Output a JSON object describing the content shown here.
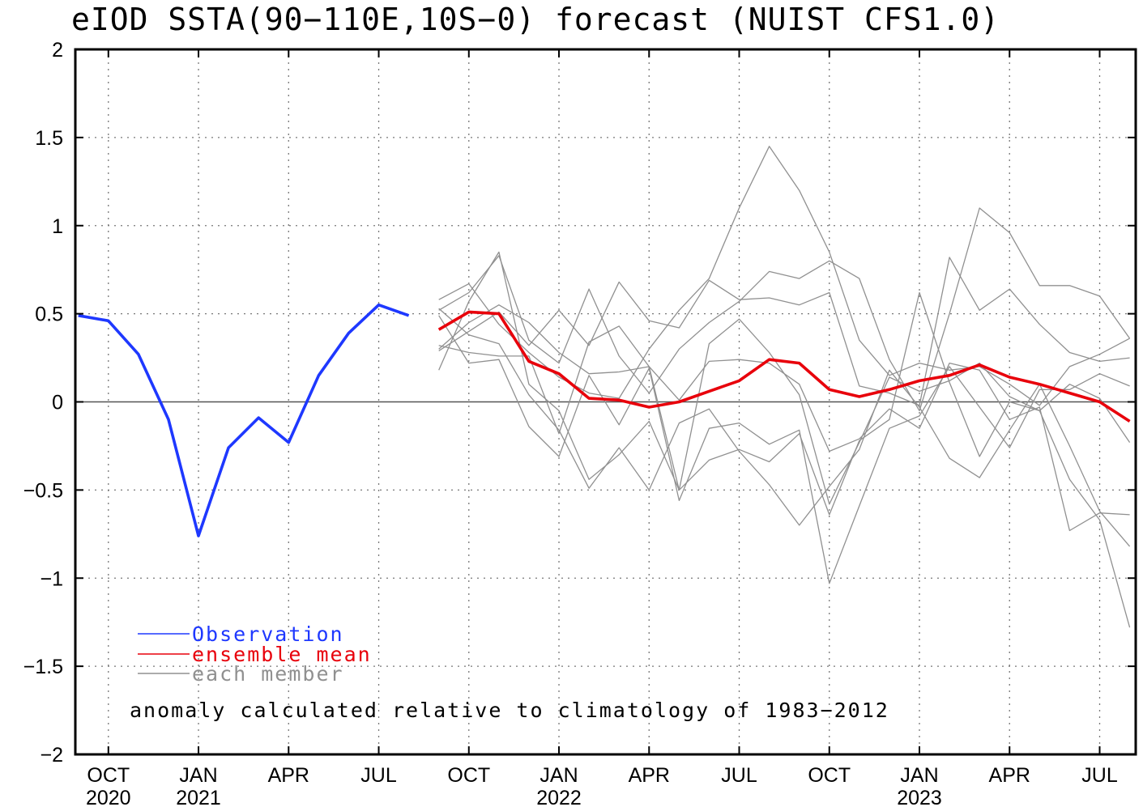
{
  "chart_data": {
    "type": "line",
    "title": "eIOD SSTA(90-110E,10S-0) forecast (NUIST CFS1.0)",
    "xlabel": "",
    "ylabel": "",
    "ylim": [
      -2,
      2
    ],
    "yticks": [
      {
        "value": 2,
        "label": "2"
      },
      {
        "value": 1.5,
        "label": "1.5"
      },
      {
        "value": 1,
        "label": "1"
      },
      {
        "value": 0.5,
        "label": "0.5"
      },
      {
        "value": 0,
        "label": "0"
      },
      {
        "value": -0.5,
        "label": "-0.5"
      },
      {
        "value": -1,
        "label": "-1"
      },
      {
        "value": -1.5,
        "label": "-1.5"
      },
      {
        "value": -2,
        "label": "-2"
      }
    ],
    "x_range": [
      "2020-09",
      "2023-08"
    ],
    "xticks": [
      {
        "month": "2020-10",
        "label": "OCT",
        "year": "2020"
      },
      {
        "month": "2021-01",
        "label": "JAN",
        "year": "2021"
      },
      {
        "month": "2021-04",
        "label": "APR",
        "year": ""
      },
      {
        "month": "2021-07",
        "label": "JUL",
        "year": ""
      },
      {
        "month": "2021-10",
        "label": "OCT",
        "year": ""
      },
      {
        "month": "2022-01",
        "label": "JAN",
        "year": "2022"
      },
      {
        "month": "2022-04",
        "label": "APR",
        "year": ""
      },
      {
        "month": "2022-07",
        "label": "JUL",
        "year": ""
      },
      {
        "month": "2022-10",
        "label": "OCT",
        "year": ""
      },
      {
        "month": "2023-01",
        "label": "JAN",
        "year": "2023"
      },
      {
        "month": "2023-04",
        "label": "APR",
        "year": ""
      },
      {
        "month": "2023-07",
        "label": "JUL",
        "year": ""
      }
    ],
    "grid": true,
    "legend_position": "bottom-left",
    "annotation": "anomaly calculated relative to climatology of 1983-2012",
    "observation": {
      "name": "Observation",
      "color": "#1e38ff",
      "x": [
        "2020-09",
        "2020-10",
        "2020-11",
        "2020-12",
        "2021-01",
        "2021-02",
        "2021-03",
        "2021-04",
        "2021-05",
        "2021-06",
        "2021-07",
        "2021-08"
      ],
      "values": [
        0.49,
        0.46,
        0.27,
        -0.1,
        -0.76,
        -0.26,
        -0.09,
        -0.23,
        0.15,
        0.39,
        0.55,
        0.49
      ]
    },
    "ensemble_mean": {
      "name": "ensemble mean",
      "color": "#e8000b",
      "x": [
        "2021-09",
        "2021-10",
        "2021-11",
        "2021-12",
        "2022-01",
        "2022-02",
        "2022-03",
        "2022-04",
        "2022-05",
        "2022-06",
        "2022-07",
        "2022-08",
        "2022-09",
        "2022-10",
        "2022-11",
        "2022-12",
        "2023-01",
        "2023-02",
        "2023-03",
        "2023-04",
        "2023-05",
        "2023-06",
        "2023-07",
        "2023-08"
      ],
      "values": [
        0.41,
        0.51,
        0.5,
        0.23,
        0.16,
        0.02,
        0.01,
        -0.03,
        0.0,
        0.06,
        0.12,
        0.24,
        0.22,
        0.07,
        0.03,
        0.07,
        0.12,
        0.15,
        0.21,
        0.14,
        0.1,
        0.05,
        0.0,
        -0.11
      ]
    },
    "members": {
      "name": "each member",
      "color": "#909090",
      "x": [
        "2021-09",
        "2021-10",
        "2021-11",
        "2021-12",
        "2022-01",
        "2022-02",
        "2022-03",
        "2022-04",
        "2022-05",
        "2022-06",
        "2022-07",
        "2022-08",
        "2022-09",
        "2022-10",
        "2022-11",
        "2022-12",
        "2023-01",
        "2023-02",
        "2023-03",
        "2023-04",
        "2023-05",
        "2023-06",
        "2023-07",
        "2023-08"
      ],
      "series": [
        [
          0.58,
          0.67,
          0.44,
          0.28,
          0.14,
          0.05,
          0.02,
          0.3,
          0.52,
          0.7,
          1.1,
          1.45,
          1.2,
          0.85,
          0.35,
          0.15,
          0.22,
          0.18,
          0.2,
          0.1,
          -0.02,
          0.2,
          0.27,
          0.36
        ],
        [
          0.52,
          0.62,
          0.83,
          0.35,
          0.22,
          0.64,
          0.26,
          0.05,
          0.3,
          0.45,
          0.57,
          0.74,
          0.7,
          0.8,
          0.7,
          0.24,
          -0.05,
          0.5,
          1.1,
          0.96,
          0.66,
          0.66,
          0.6,
          0.36
        ],
        [
          0.29,
          0.4,
          0.51,
          0.32,
          0.52,
          0.32,
          0.68,
          0.46,
          0.42,
          0.69,
          0.58,
          0.59,
          0.55,
          0.62,
          0.09,
          0.05,
          -0.02,
          0.82,
          0.52,
          0.64,
          0.44,
          0.28,
          0.23,
          0.25
        ],
        [
          0.18,
          0.57,
          0.85,
          0.1,
          -0.05,
          -0.44,
          -0.3,
          -0.11,
          -0.5,
          -0.33,
          -0.27,
          -0.34,
          -0.18,
          -0.64,
          -0.22,
          -0.1,
          0.62,
          0.11,
          -0.31,
          0.0,
          -0.05,
          -0.44,
          -0.67,
          -1.28
        ],
        [
          0.3,
          0.45,
          0.55,
          0.45,
          0.28,
          0.16,
          0.17,
          0.2,
          0.01,
          0.23,
          0.24,
          0.22,
          0.1,
          -0.28,
          -0.21,
          -0.04,
          -0.15,
          0.22,
          0.18,
          -0.1,
          -0.03,
          -0.73,
          -0.63,
          -0.64
        ],
        [
          0.53,
          0.38,
          0.33,
          0.04,
          -0.16,
          -0.49,
          -0.26,
          -0.5,
          -0.12,
          -0.04,
          -0.28,
          -0.47,
          -0.7,
          -0.48,
          -0.27,
          0.18,
          -0.03,
          -0.32,
          -0.43,
          -0.16,
          0.1,
          -0.25,
          -0.62,
          -0.82
        ],
        [
          0.49,
          0.22,
          0.24,
          -0.14,
          -0.31,
          0.15,
          -0.13,
          0.19,
          -0.56,
          -0.15,
          -0.12,
          -0.24,
          -0.16,
          -1.03,
          -0.59,
          -0.15,
          -0.08,
          0.2,
          -0.03,
          -0.26,
          0.07,
          0.07,
          0.16,
          0.09
        ],
        [
          0.32,
          0.28,
          0.26,
          0.26,
          -0.18,
          0.34,
          0.43,
          0.2,
          -0.5,
          0.33,
          0.47,
          0.28,
          0.04,
          -0.58,
          -0.23,
          0.14,
          0.06,
          0.12,
          0.22,
          0.03,
          -0.05,
          0.1,
          0.02,
          -0.23
        ]
      ]
    }
  },
  "legend": {
    "items": [
      {
        "label": "Observation",
        "color": "#1e38ff"
      },
      {
        "label": "ensemble mean",
        "color": "#e8000b"
      },
      {
        "label": "each member",
        "color": "#909090"
      }
    ]
  }
}
